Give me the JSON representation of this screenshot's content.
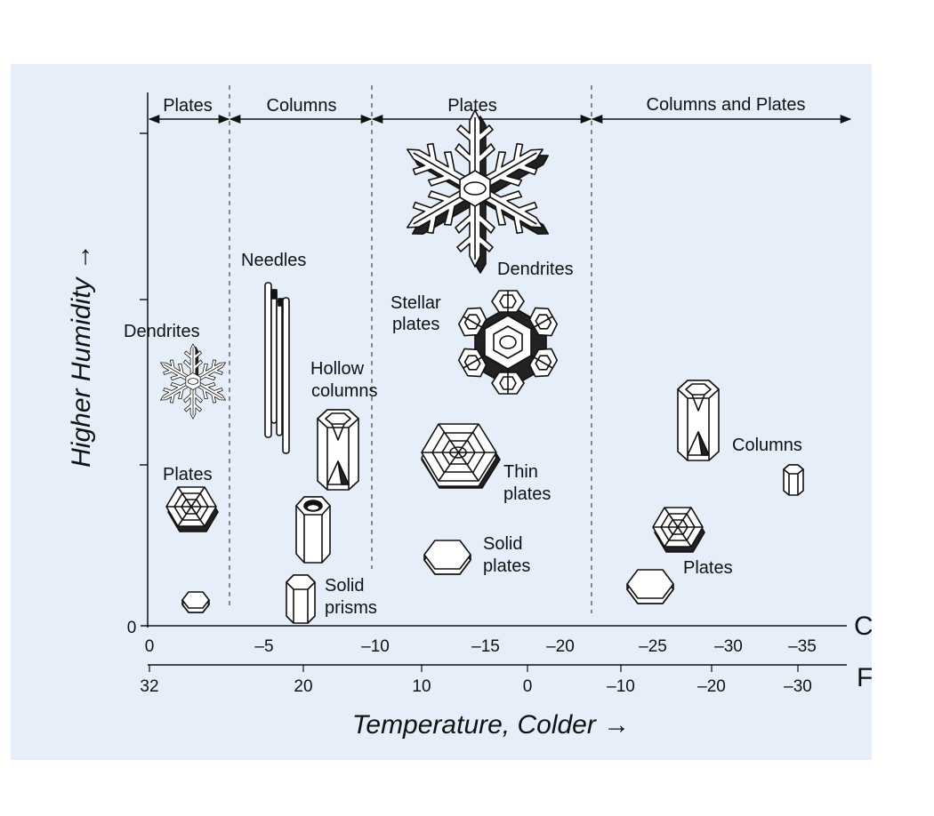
{
  "diagram": {
    "regimes": [
      {
        "label": "Plates"
      },
      {
        "label": "Columns"
      },
      {
        "label": "Plates"
      },
      {
        "label": "Columns and Plates"
      }
    ],
    "crystal_labels": {
      "needles": "Needles",
      "dendrites_warm": "Dendrites",
      "dendrites_cold": "Dendrites",
      "stellar_plates_1": "Stellar",
      "stellar_plates_2": "plates",
      "hollow_columns_1": "Hollow",
      "hollow_columns_2": "columns",
      "plates_warm": "Plates",
      "thin_plates_1": "Thin",
      "thin_plates_2": "plates",
      "solid_plates_1": "Solid",
      "solid_plates_2": "plates",
      "solid_prisms_1": "Solid",
      "solid_prisms_2": "prisms",
      "columns_cold": "Columns",
      "plates_cold": "Plates"
    },
    "y_axis": {
      "title": "Higher Humidity →",
      "zero_label": "0"
    },
    "celsius_axis": {
      "unit": "C°",
      "ticks": [
        "0",
        "–5",
        "–10",
        "–15",
        "–20",
        "–25",
        "–30",
        "–35"
      ]
    },
    "fahrenheit_axis": {
      "unit": "F°",
      "ticks": [
        "32",
        "20",
        "10",
        "0",
        "–10",
        "–20",
        "–30"
      ]
    },
    "x_axis_title": "Temperature,  Colder →"
  }
}
